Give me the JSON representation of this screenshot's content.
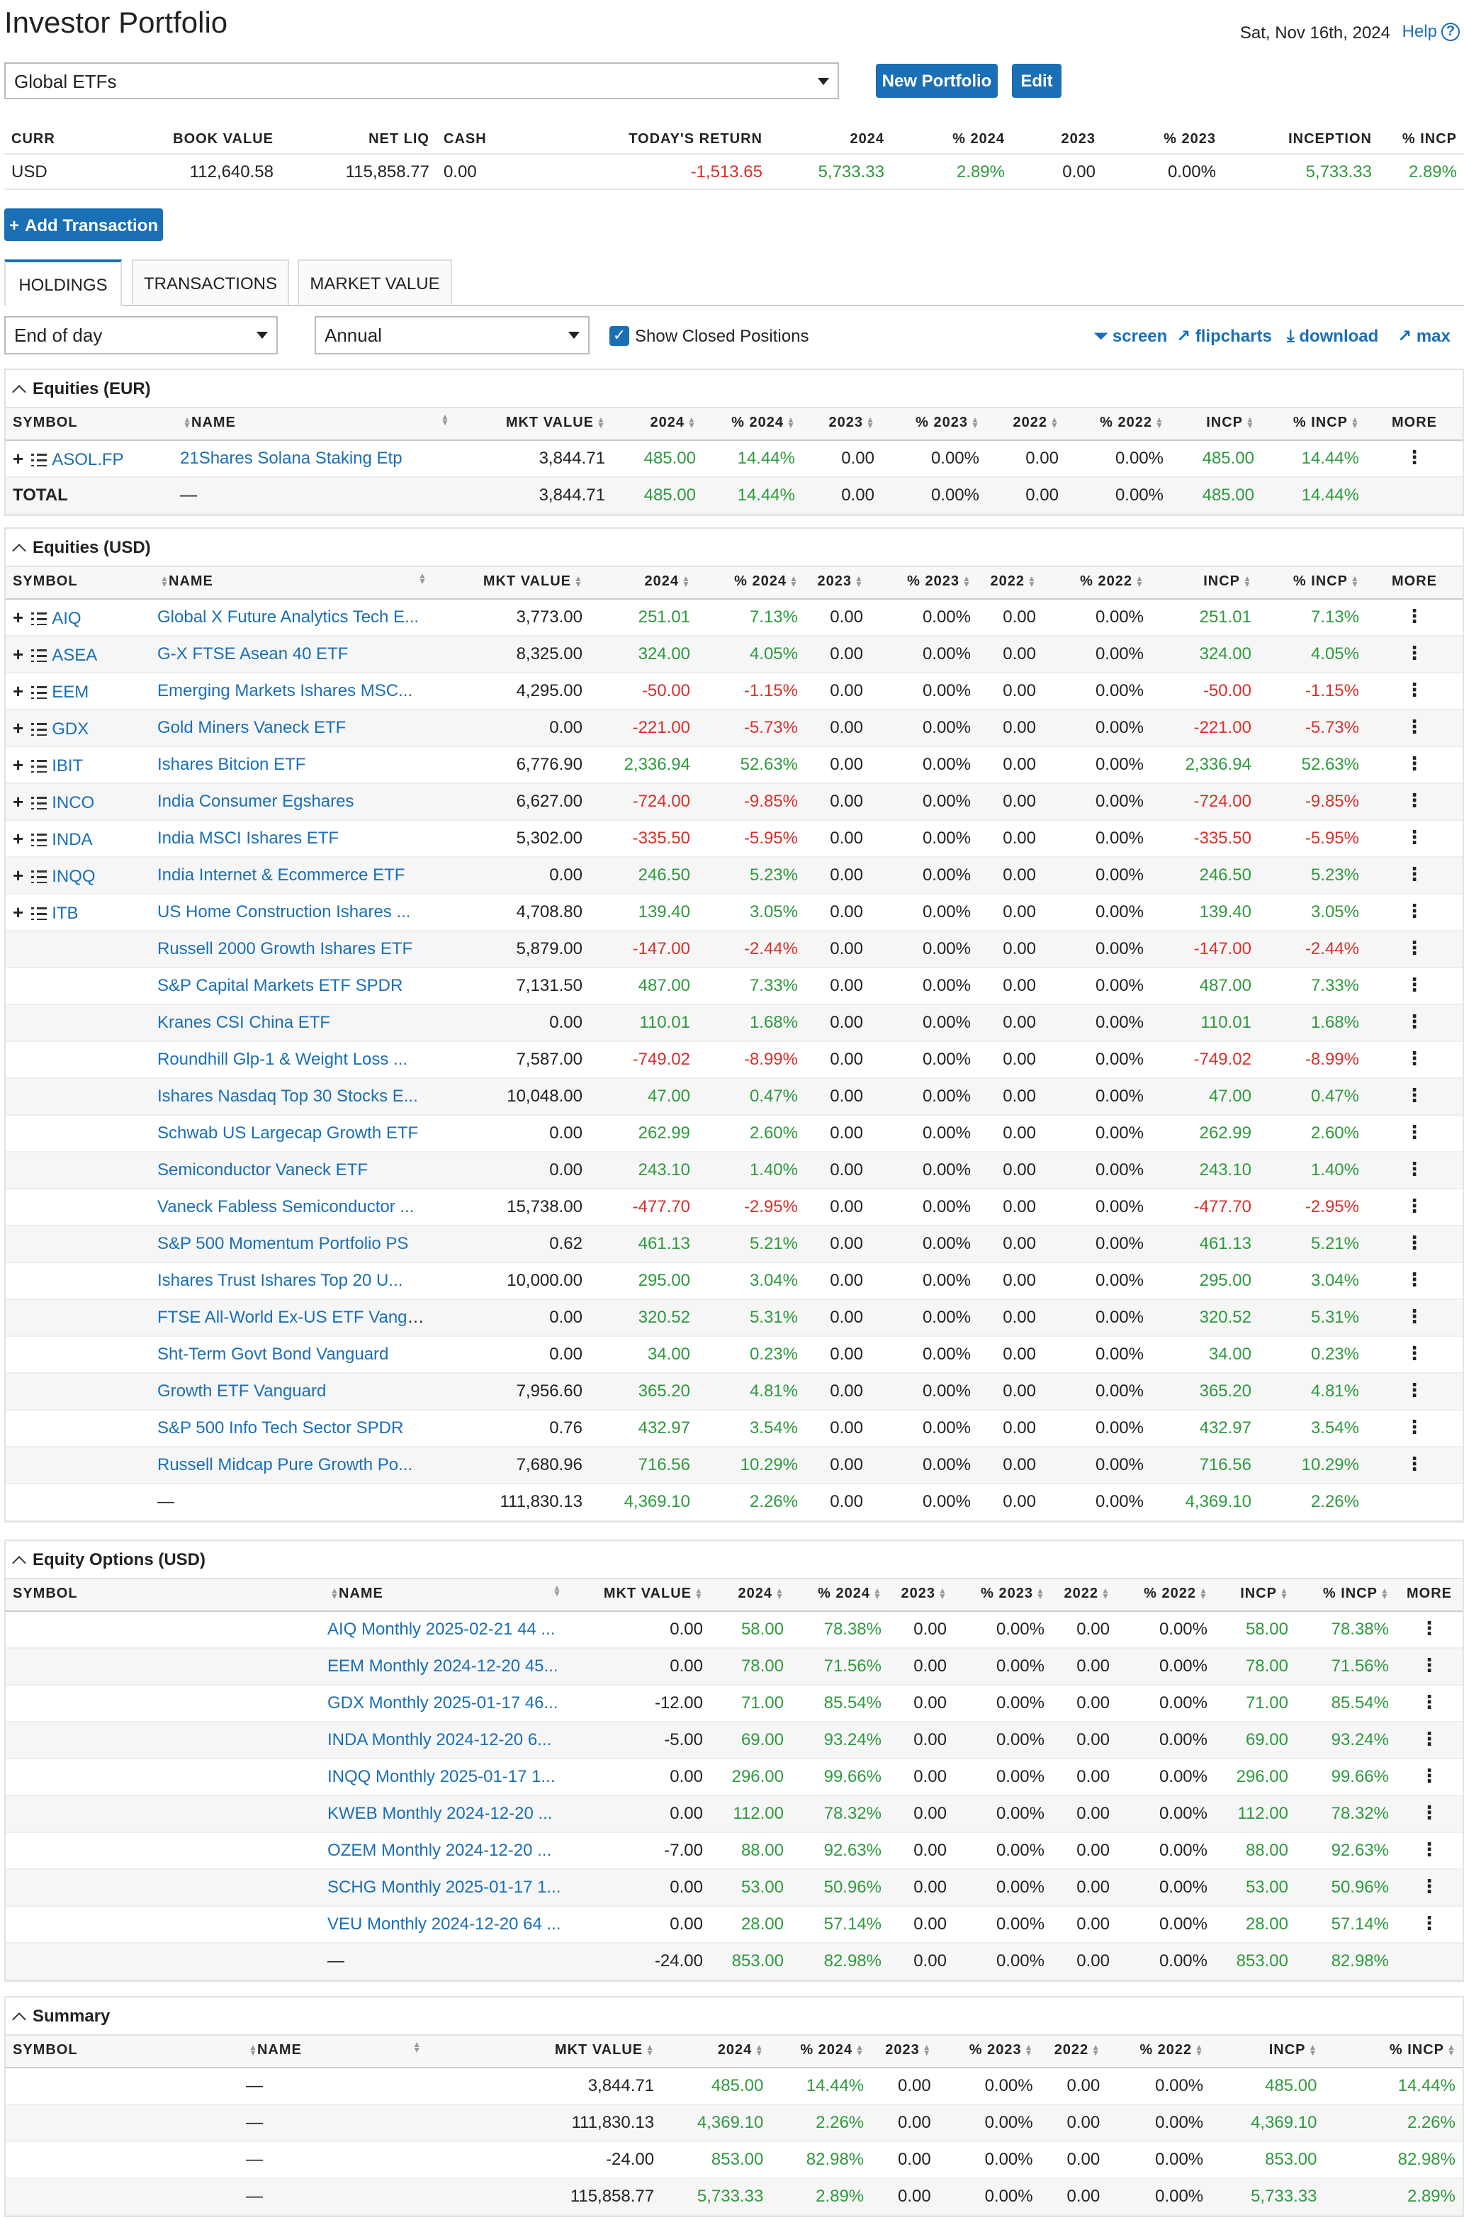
{
  "header": {
    "title": "Investor Portfolio",
    "date": "Sat, Nov 16th, 2024",
    "help_label": "Help",
    "help_icon": "question-circle-icon"
  },
  "portfolio": {
    "selected": "Global ETFs",
    "new_button": "New Portfolio",
    "edit_button": "Edit"
  },
  "account_summary": {
    "headers": [
      "CURR",
      "BOOK VALUE",
      "NET LIQ",
      "CASH",
      "TODAY'S RETURN",
      "2024",
      "% 2024",
      "2023",
      "% 2023",
      "INCEPTION",
      "% INCP"
    ],
    "row": [
      "USD",
      "112,640.58",
      "115,858.77",
      "0.00",
      "-1,513.65",
      "5,733.33",
      "2.89%",
      "0.00",
      "0.00%",
      "5,733.33",
      "2.89%"
    ]
  },
  "add_transaction": "Add Transaction",
  "tabs": [
    "HOLDINGS",
    "TRANSACTIONS",
    "MARKET VALUE"
  ],
  "filters": {
    "period": "End of day",
    "frequency": "Annual",
    "show_closed": "Show Closed Positions",
    "tools": [
      "screen",
      "flipcharts",
      "download",
      "max"
    ]
  },
  "sections": {
    "eur": {
      "title": "Equities (EUR)",
      "headers": [
        "SYMBOL",
        "NAME",
        "MKT VALUE",
        "2024",
        "% 2024",
        "2023",
        "% 2023",
        "2022",
        "% 2022",
        "INCP",
        "% INCP",
        "MORE"
      ],
      "rows": [
        [
          "ASOL.FP",
          "21Shares Solana Staking Etp",
          "3,844.71",
          "485.00",
          "14.44%",
          "0.00",
          "0.00%",
          "0.00",
          "0.00%",
          "485.00",
          "14.44%"
        ]
      ],
      "total": [
        "TOTAL",
        "—",
        "3,844.71",
        "485.00",
        "14.44%",
        "0.00",
        "0.00%",
        "0.00",
        "0.00%",
        "485.00",
        "14.44%"
      ]
    },
    "usd": {
      "title": "Equities (USD)",
      "headers": [
        "SYMBOL",
        "NAME",
        "MKT VALUE",
        "2024",
        "% 2024",
        "2023",
        "% 2023",
        "2022",
        "% 2022",
        "INCP",
        "% INCP",
        "MORE"
      ],
      "rows": [
        [
          "AIQ",
          "Global X Future Analytics Tech E...",
          "3,773.00",
          "251.01",
          "7.13%",
          "0.00",
          "0.00%",
          "0.00",
          "0.00%",
          "251.01",
          "7.13%"
        ],
        [
          "ASEA",
          "G-X FTSE Asean 40 ETF",
          "8,325.00",
          "324.00",
          "4.05%",
          "0.00",
          "0.00%",
          "0.00",
          "0.00%",
          "324.00",
          "4.05%"
        ],
        [
          "EEM",
          "Emerging Markets Ishares MSC...",
          "4,295.00",
          "-50.00",
          "-1.15%",
          "0.00",
          "0.00%",
          "0.00",
          "0.00%",
          "-50.00",
          "-1.15%"
        ],
        [
          "GDX",
          "Gold Miners Vaneck ETF",
          "0.00",
          "-221.00",
          "-5.73%",
          "0.00",
          "0.00%",
          "0.00",
          "0.00%",
          "-221.00",
          "-5.73%"
        ],
        [
          "IBIT",
          "Ishares Bitcion ETF",
          "6,776.90",
          "2,336.94",
          "52.63%",
          "0.00",
          "0.00%",
          "0.00",
          "0.00%",
          "2,336.94",
          "52.63%"
        ],
        [
          "INCO",
          "India Consumer Egshares",
          "6,627.00",
          "-724.00",
          "-9.85%",
          "0.00",
          "0.00%",
          "0.00",
          "0.00%",
          "-724.00",
          "-9.85%"
        ],
        [
          "INDA",
          "India MSCI Ishares ETF",
          "5,302.00",
          "-335.50",
          "-5.95%",
          "0.00",
          "0.00%",
          "0.00",
          "0.00%",
          "-335.50",
          "-5.95%"
        ],
        [
          "INQQ",
          "India Internet & Ecommerce ETF",
          "0.00",
          "246.50",
          "5.23%",
          "0.00",
          "0.00%",
          "0.00",
          "0.00%",
          "246.50",
          "5.23%"
        ],
        [
          "ITB",
          "US Home Construction Ishares ...",
          "4,708.80",
          "139.40",
          "3.05%",
          "0.00",
          "0.00%",
          "0.00",
          "0.00%",
          "139.40",
          "3.05%"
        ],
        [
          "",
          "Russell 2000 Growth Ishares ETF",
          "5,879.00",
          "-147.00",
          "-2.44%",
          "0.00",
          "0.00%",
          "0.00",
          "0.00%",
          "-147.00",
          "-2.44%"
        ],
        [
          "",
          "S&P Capital Markets ETF SPDR",
          "7,131.50",
          "487.00",
          "7.33%",
          "0.00",
          "0.00%",
          "0.00",
          "0.00%",
          "487.00",
          "7.33%"
        ],
        [
          "",
          "Kranes CSI China ETF",
          "0.00",
          "110.01",
          "1.68%",
          "0.00",
          "0.00%",
          "0.00",
          "0.00%",
          "110.01",
          "1.68%"
        ],
        [
          "",
          "Roundhill Glp-1 & Weight Loss ...",
          "7,587.00",
          "-749.02",
          "-8.99%",
          "0.00",
          "0.00%",
          "0.00",
          "0.00%",
          "-749.02",
          "-8.99%"
        ],
        [
          "",
          "Ishares Nasdaq Top 30 Stocks E...",
          "10,048.00",
          "47.00",
          "0.47%",
          "0.00",
          "0.00%",
          "0.00",
          "0.00%",
          "47.00",
          "0.47%"
        ],
        [
          "",
          "Schwab US Largecap Growth ETF",
          "0.00",
          "262.99",
          "2.60%",
          "0.00",
          "0.00%",
          "0.00",
          "0.00%",
          "262.99",
          "2.60%"
        ],
        [
          "",
          "Semiconductor Vaneck ETF",
          "0.00",
          "243.10",
          "1.40%",
          "0.00",
          "0.00%",
          "0.00",
          "0.00%",
          "243.10",
          "1.40%"
        ],
        [
          "",
          "Vaneck Fabless Semiconductor ...",
          "15,738.00",
          "-477.70",
          "-2.95%",
          "0.00",
          "0.00%",
          "0.00",
          "0.00%",
          "-477.70",
          "-2.95%"
        ],
        [
          "",
          "S&P 500 Momentum Portfolio PS",
          "0.62",
          "461.13",
          "5.21%",
          "0.00",
          "0.00%",
          "0.00",
          "0.00%",
          "461.13",
          "5.21%"
        ],
        [
          "",
          "Ishares Trust Ishares Top 20 U...",
          "10,000.00",
          "295.00",
          "3.04%",
          "0.00",
          "0.00%",
          "0.00",
          "0.00%",
          "295.00",
          "3.04%"
        ],
        [
          "",
          "FTSE All-World Ex-US ETF Vangu...",
          "0.00",
          "320.52",
          "5.31%",
          "0.00",
          "0.00%",
          "0.00",
          "0.00%",
          "320.52",
          "5.31%"
        ],
        [
          "",
          "Sht-Term Govt Bond Vanguard",
          "0.00",
          "34.00",
          "0.23%",
          "0.00",
          "0.00%",
          "0.00",
          "0.00%",
          "34.00",
          "0.23%"
        ],
        [
          "",
          "Growth ETF Vanguard",
          "7,956.60",
          "365.20",
          "4.81%",
          "0.00",
          "0.00%",
          "0.00",
          "0.00%",
          "365.20",
          "4.81%"
        ],
        [
          "",
          "S&P 500 Info Tech Sector SPDR",
          "0.76",
          "432.97",
          "3.54%",
          "0.00",
          "0.00%",
          "0.00",
          "0.00%",
          "432.97",
          "3.54%"
        ],
        [
          "",
          "Russell Midcap Pure Growth Po...",
          "7,680.96",
          "716.56",
          "10.29%",
          "0.00",
          "0.00%",
          "0.00",
          "0.00%",
          "716.56",
          "10.29%"
        ]
      ],
      "total": [
        "",
        "—",
        "111,830.13",
        "4,369.10",
        "2.26%",
        "0.00",
        "0.00%",
        "0.00",
        "0.00%",
        "4,369.10",
        "2.26%"
      ]
    },
    "options": {
      "title": "Equity Options (USD)",
      "headers": [
        "SYMBOL",
        "NAME",
        "MKT VALUE",
        "2024",
        "% 2024",
        "2023",
        "% 2023",
        "2022",
        "% 2022",
        "INCP",
        "% INCP",
        "MORE"
      ],
      "rows": [
        [
          "",
          "AIQ Monthly 2025-02-21 44 ...",
          "0.00",
          "58.00",
          "78.38%",
          "0.00",
          "0.00%",
          "0.00",
          "0.00%",
          "58.00",
          "78.38%"
        ],
        [
          "",
          "EEM Monthly 2024-12-20 45...",
          "0.00",
          "78.00",
          "71.56%",
          "0.00",
          "0.00%",
          "0.00",
          "0.00%",
          "78.00",
          "71.56%"
        ],
        [
          "",
          "GDX Monthly 2025-01-17 46...",
          "-12.00",
          "71.00",
          "85.54%",
          "0.00",
          "0.00%",
          "0.00",
          "0.00%",
          "71.00",
          "85.54%"
        ],
        [
          "",
          "INDA Monthly 2024-12-20 6...",
          "-5.00",
          "69.00",
          "93.24%",
          "0.00",
          "0.00%",
          "0.00",
          "0.00%",
          "69.00",
          "93.24%"
        ],
        [
          "",
          "INQQ Monthly 2025-01-17 1...",
          "0.00",
          "296.00",
          "99.66%",
          "0.00",
          "0.00%",
          "0.00",
          "0.00%",
          "296.00",
          "99.66%"
        ],
        [
          "",
          "KWEB Monthly 2024-12-20 ...",
          "0.00",
          "112.00",
          "78.32%",
          "0.00",
          "0.00%",
          "0.00",
          "0.00%",
          "112.00",
          "78.32%"
        ],
        [
          "",
          "OZEM Monthly 2024-12-20 ...",
          "-7.00",
          "88.00",
          "92.63%",
          "0.00",
          "0.00%",
          "0.00",
          "0.00%",
          "88.00",
          "92.63%"
        ],
        [
          "",
          "SCHG Monthly 2025-01-17 1...",
          "0.00",
          "53.00",
          "50.96%",
          "0.00",
          "0.00%",
          "0.00",
          "0.00%",
          "53.00",
          "50.96%"
        ],
        [
          "",
          "VEU Monthly 2024-12-20 64 ...",
          "0.00",
          "28.00",
          "57.14%",
          "0.00",
          "0.00%",
          "0.00",
          "0.00%",
          "28.00",
          "57.14%"
        ]
      ],
      "total": [
        "",
        "—",
        "-24.00",
        "853.00",
        "82.98%",
        "0.00",
        "0.00%",
        "0.00",
        "0.00%",
        "853.00",
        "82.98%"
      ]
    },
    "summary": {
      "title": "Summary",
      "headers": [
        "SYMBOL",
        "NAME",
        "MKT VALUE",
        "2024",
        "% 2024",
        "2023",
        "% 2023",
        "2022",
        "% 2022",
        "INCP",
        "% INCP"
      ],
      "rows": [
        [
          "",
          "—",
          "3,844.71",
          "485.00",
          "14.44%",
          "0.00",
          "0.00%",
          "0.00",
          "0.00%",
          "485.00",
          "14.44%"
        ],
        [
          "",
          "—",
          "111,830.13",
          "4,369.10",
          "2.26%",
          "0.00",
          "0.00%",
          "0.00",
          "0.00%",
          "4,369.10",
          "2.26%"
        ],
        [
          "",
          "—",
          "-24.00",
          "853.00",
          "82.98%",
          "0.00",
          "0.00%",
          "0.00",
          "0.00%",
          "853.00",
          "82.98%"
        ],
        [
          "",
          "—",
          "115,858.77",
          "5,733.33",
          "2.89%",
          "0.00",
          "0.00%",
          "0.00",
          "0.00%",
          "5,733.33",
          "2.89%"
        ]
      ]
    }
  },
  "colors": {
    "accent": "#1a6fb5",
    "positive": "#2e9a3e",
    "negative": "#d9302c"
  }
}
